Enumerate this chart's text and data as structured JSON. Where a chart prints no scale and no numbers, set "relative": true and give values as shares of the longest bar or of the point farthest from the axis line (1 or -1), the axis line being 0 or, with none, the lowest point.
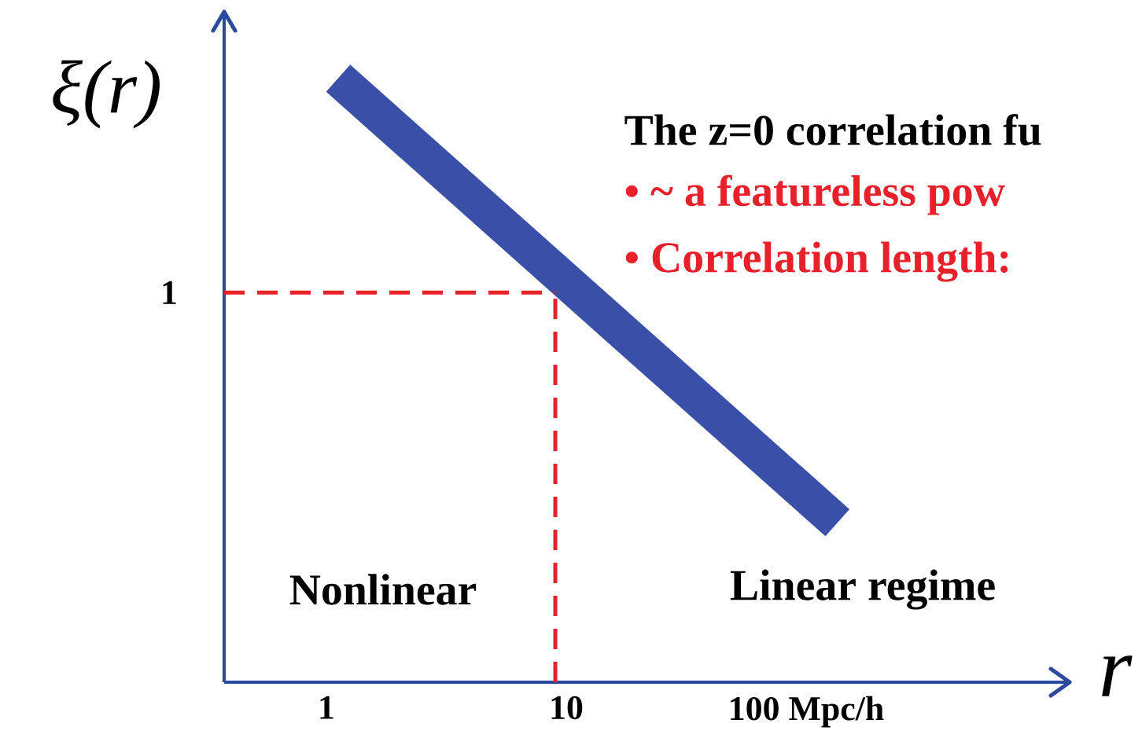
{
  "chart_data": {
    "type": "line",
    "relative": true,
    "log": "x",
    "xlabel": "r",
    "ylabel": "ξ(r)",
    "x": [
      1.12,
      135
    ],
    "values": [
      1,
      0.264
    ],
    "color": "#3a4fa8",
    "xlim": [
      0.375,
      1254
    ],
    "xticks": [
      1,
      10,
      {
        "value": 100,
        "label": "100 Mpc/h"
      }
    ],
    "ref_lines": [
      {
        "axis": "y",
        "value": 0.645,
        "label": "1",
        "color": "#e8202a",
        "line_style": "dashed"
      },
      {
        "axis": "x",
        "value": 9,
        "color": "#e8202a",
        "line_style": "dashed"
      }
    ],
    "annotations": [
      "The z=0 correlation fu",
      "• ~ a featureless pow",
      "• Correlation length:",
      "Nonlinear",
      "Linear regime"
    ]
  }
}
